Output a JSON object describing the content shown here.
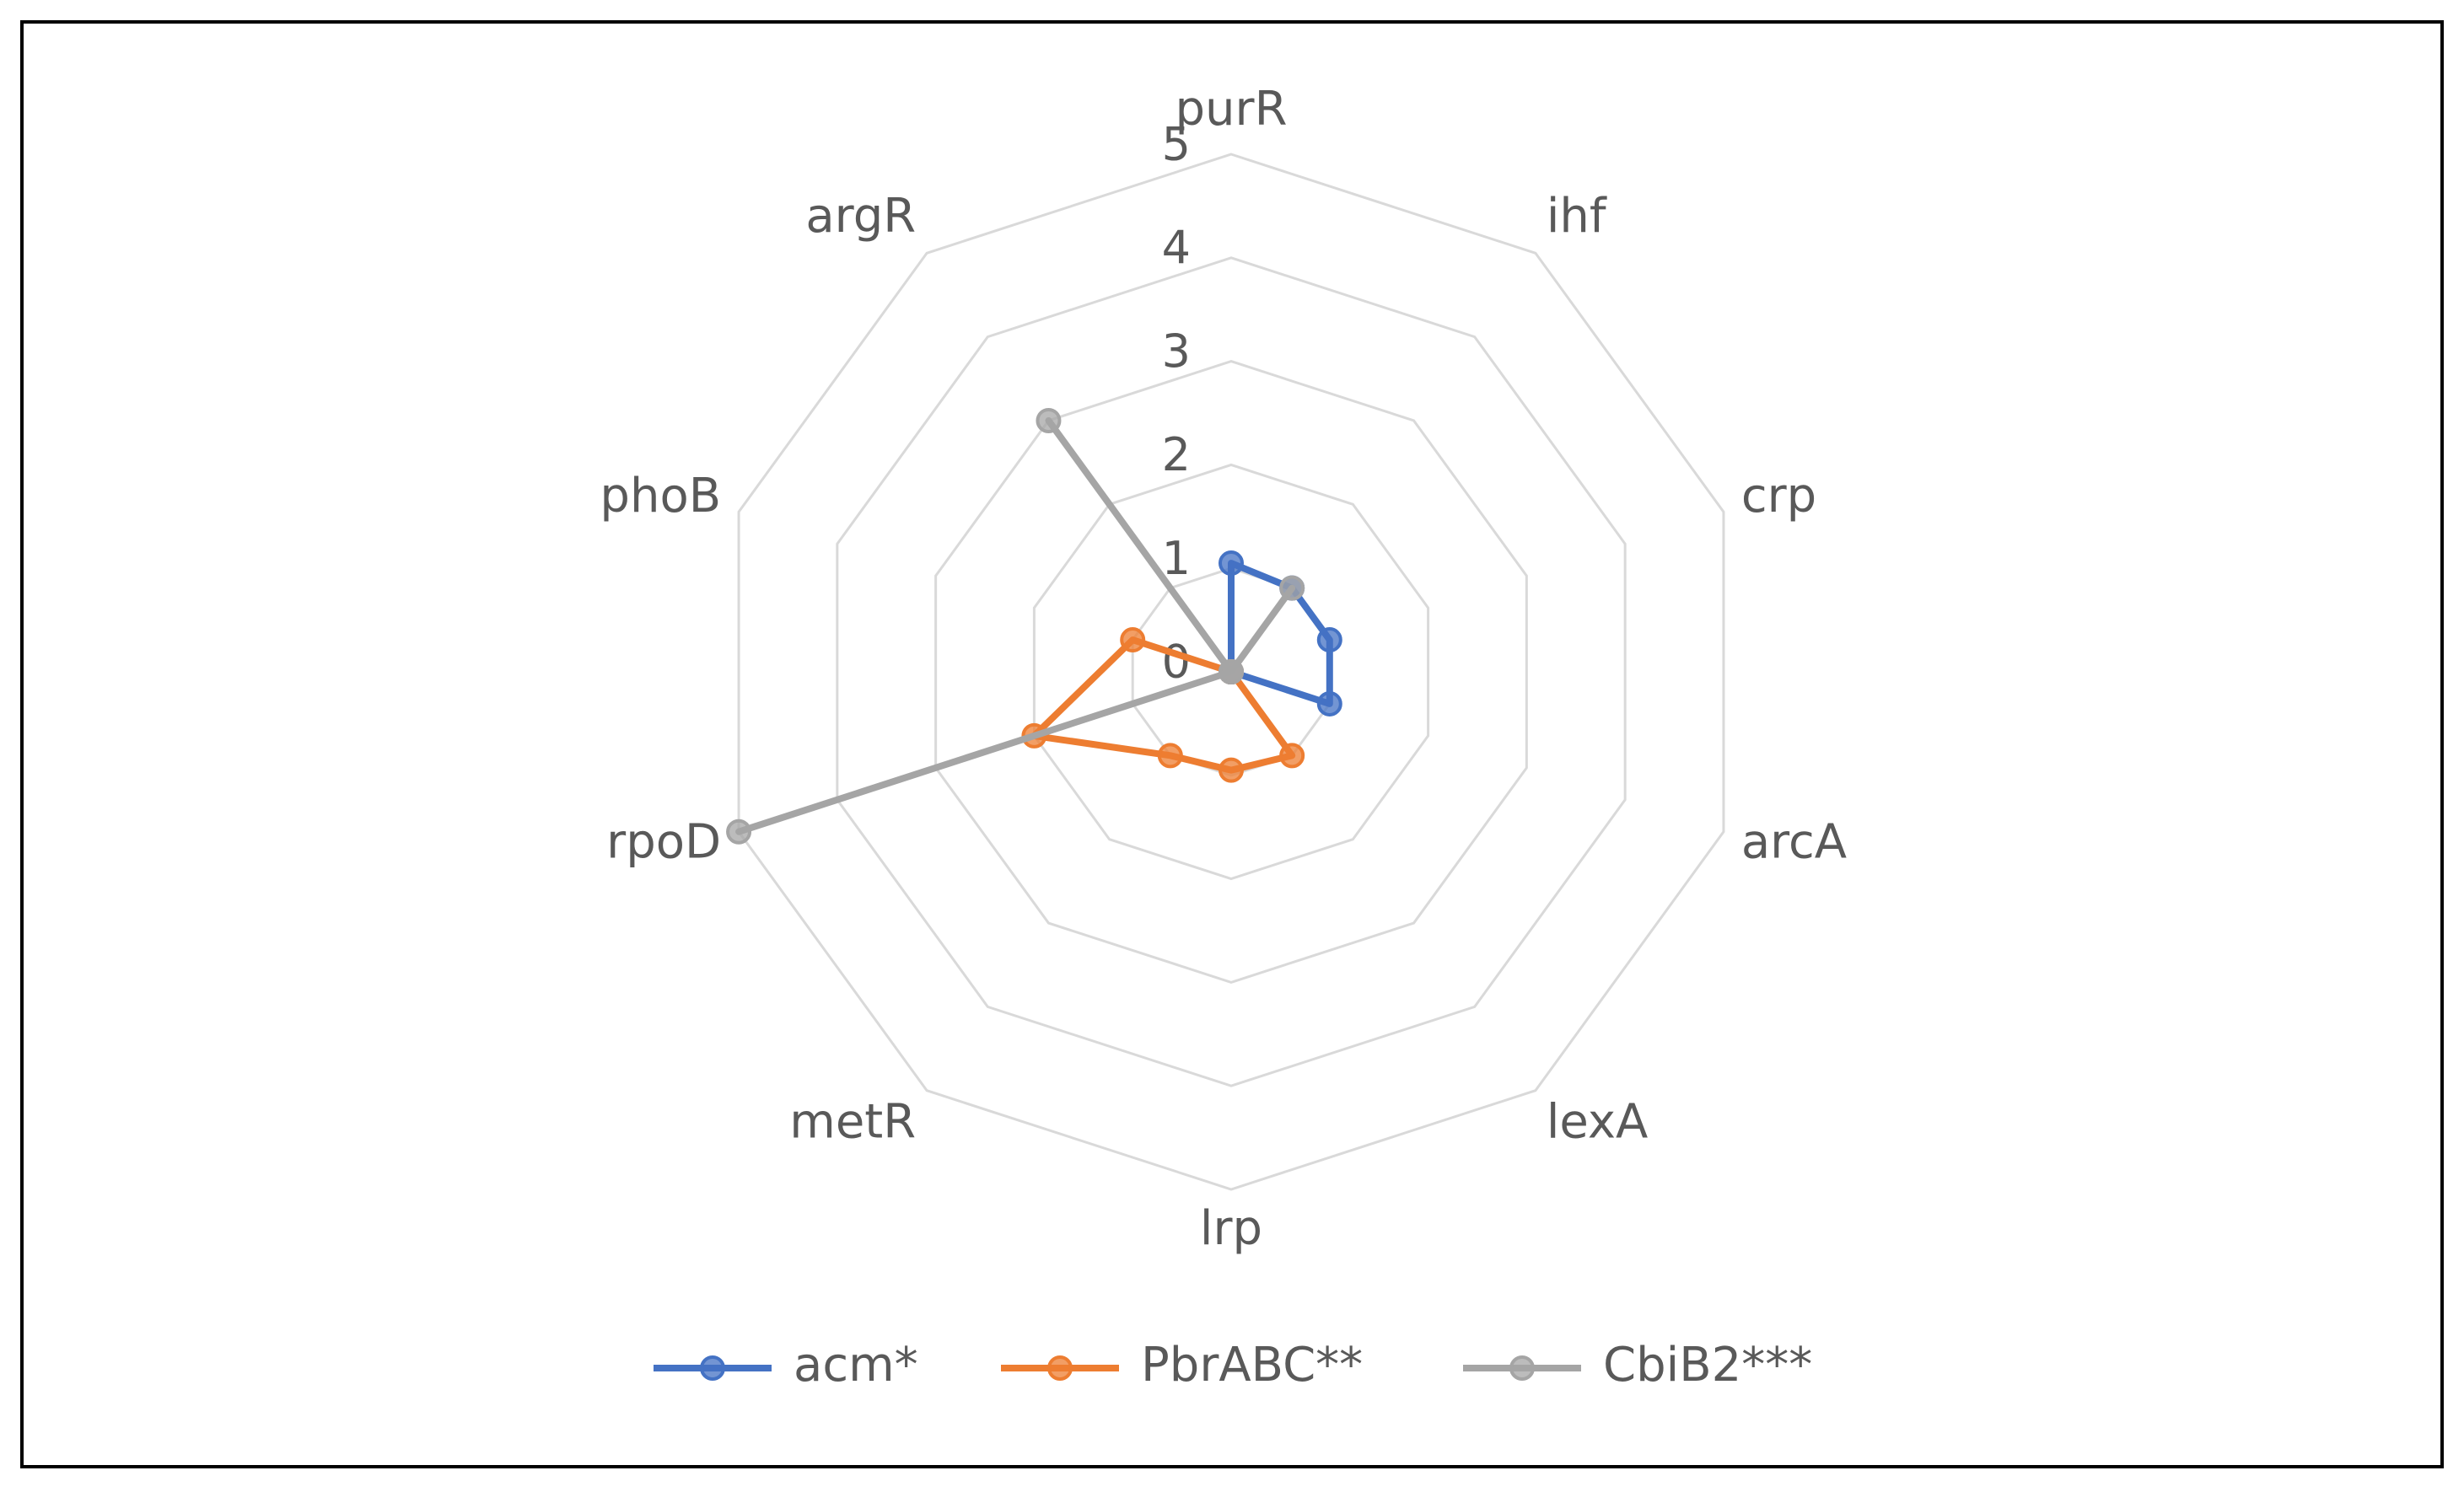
{
  "chart_data": {
    "type": "radar",
    "categories": [
      "purR",
      "ihf",
      "crp",
      "arcA",
      "lexA",
      "lrp",
      "metR",
      "rpoD",
      "phoB",
      "argR"
    ],
    "series": [
      {
        "name": "acm*",
        "color": "#4472c4",
        "values": [
          1.05,
          1,
          1,
          1,
          0,
          0,
          0,
          0,
          0,
          0
        ]
      },
      {
        "name": "PbrABC**",
        "color": "#ed7d31",
        "values": [
          0,
          0,
          0,
          0,
          1,
          0.95,
          1,
          2,
          1,
          0
        ]
      },
      {
        "name": "CbiB2***",
        "color": "#a5a5a5",
        "values": [
          0,
          1,
          0,
          0,
          0,
          0,
          0,
          5,
          0,
          3
        ]
      }
    ],
    "ylim": [
      0,
      5
    ],
    "yticks": [
      0,
      1,
      2,
      3,
      4,
      5
    ],
    "grid": true,
    "legend": "bottom"
  }
}
